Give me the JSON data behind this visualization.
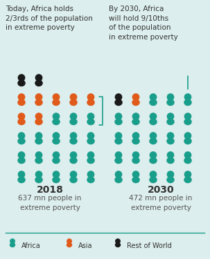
{
  "bg_color": "#dceeed",
  "africa_color": "#1a9e8c",
  "asia_color": "#e05a1a",
  "row_color": "#1a1a1a",
  "title_left": "Today, Africa holds\n2/3rds of the population\nin extreme poverty",
  "title_right": "By 2030, Africa\nwill hold 9/10ths\nof the population\nin extreme poverty",
  "year_left": "2018",
  "year_right": "2030",
  "subtitle_left": "637 mn people in\nextreme poverty",
  "subtitle_right": "472 mn people in\nextreme poverty",
  "legend_africa": "Africa",
  "legend_asia": "Asia",
  "legend_row": "Rest of World",
  "grid_2018": [
    [
      "black",
      "black",
      "",
      "",
      ""
    ],
    [
      "orange",
      "orange",
      "orange",
      "orange",
      "orange"
    ],
    [
      "orange",
      "orange",
      "teal",
      "teal",
      "teal"
    ],
    [
      "teal",
      "teal",
      "teal",
      "teal",
      "teal"
    ],
    [
      "teal",
      "teal",
      "teal",
      "teal",
      "teal"
    ],
    [
      "teal",
      "teal",
      "teal",
      "teal",
      "teal"
    ]
  ],
  "grid_2030": [
    [
      "black",
      "orange",
      "teal",
      "teal",
      "teal"
    ],
    [
      "teal",
      "teal",
      "teal",
      "teal",
      "teal"
    ],
    [
      "teal",
      "teal",
      "teal",
      "teal",
      "teal"
    ],
    [
      "teal",
      "teal",
      "teal",
      "teal",
      "teal"
    ],
    [
      "teal",
      "teal",
      "teal",
      "teal",
      "teal"
    ]
  ]
}
